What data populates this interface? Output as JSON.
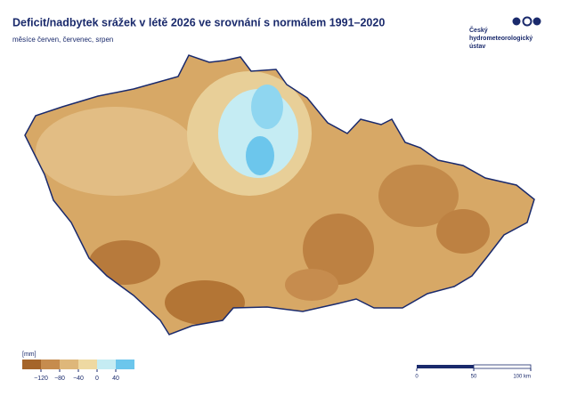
{
  "header": {
    "title": "Deficit/nadbytek srážek v létě 2026 ve srovnání s normálem 1991–2020",
    "subtitle": "měsíce červen, červenec, srpen"
  },
  "logo": {
    "lines": [
      "Český",
      "hydrometeorologický",
      "ústav"
    ]
  },
  "legend": {
    "unit": "[mm]",
    "colors": [
      "#a5652a",
      "#c68c4e",
      "#deb77a",
      "#eed9a2",
      "#c5ecf3",
      "#6cc6ec"
    ],
    "ticks": [
      {
        "value": -120,
        "label": "−120"
      },
      {
        "value": -80,
        "label": "−80"
      },
      {
        "value": -40,
        "label": "−40"
      },
      0,
      40
    ]
  },
  "scale_bar": {
    "ticks": [
      0,
      50,
      {
        "value": 100,
        "label": "100 km"
      }
    ]
  }
}
